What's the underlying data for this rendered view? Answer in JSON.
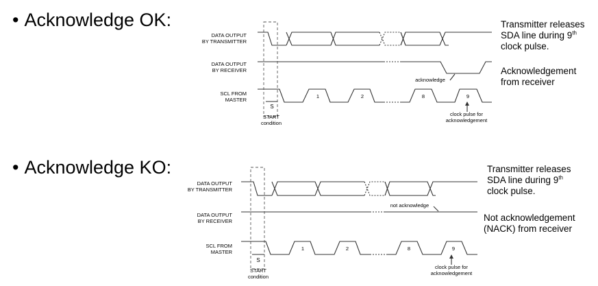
{
  "panels": [
    {
      "bullet": "Acknowledge OK:",
      "signals": {
        "tx": [
          "DATA OUTPUT",
          "BY TRANSMITTER"
        ],
        "rx": [
          "DATA OUTPUT",
          "BY RECEIVER"
        ],
        "scl": [
          "SCL FROM",
          "MASTER"
        ]
      },
      "pulses": [
        "1",
        "2",
        "8",
        "9"
      ],
      "start_marker": "S",
      "start_label": [
        "START",
        "condition"
      ],
      "ack_label": "acknowledge",
      "clock_label": [
        "clock pulse for",
        "acknowledgement"
      ],
      "note_tx": [
        "Transmitter releases",
        "SDA line during 9",
        "th",
        "clock pulse."
      ],
      "note_rx": [
        "Acknowledgement",
        "from receiver"
      ]
    },
    {
      "bullet": "Acknowledge KO:",
      "signals": {
        "tx": [
          "DATA OUTPUT",
          "BY TRANSMITTER"
        ],
        "rx": [
          "DATA OUTPUT",
          "BY RECEIVER"
        ],
        "scl": [
          "SCL FROM",
          "MASTER"
        ]
      },
      "pulses": [
        "1",
        "2",
        "8",
        "9"
      ],
      "start_marker": "S",
      "start_label": [
        "START",
        "condition"
      ],
      "ack_label": "not acknowledge",
      "clock_label": [
        "clock pulse for",
        "acknowledgement"
      ],
      "note_tx": [
        "Transmitter releases",
        "SDA line during 9",
        "th",
        "clock pulse."
      ],
      "note_rx": [
        "Not acknowledgement",
        "(NACK) from receiver"
      ]
    }
  ]
}
